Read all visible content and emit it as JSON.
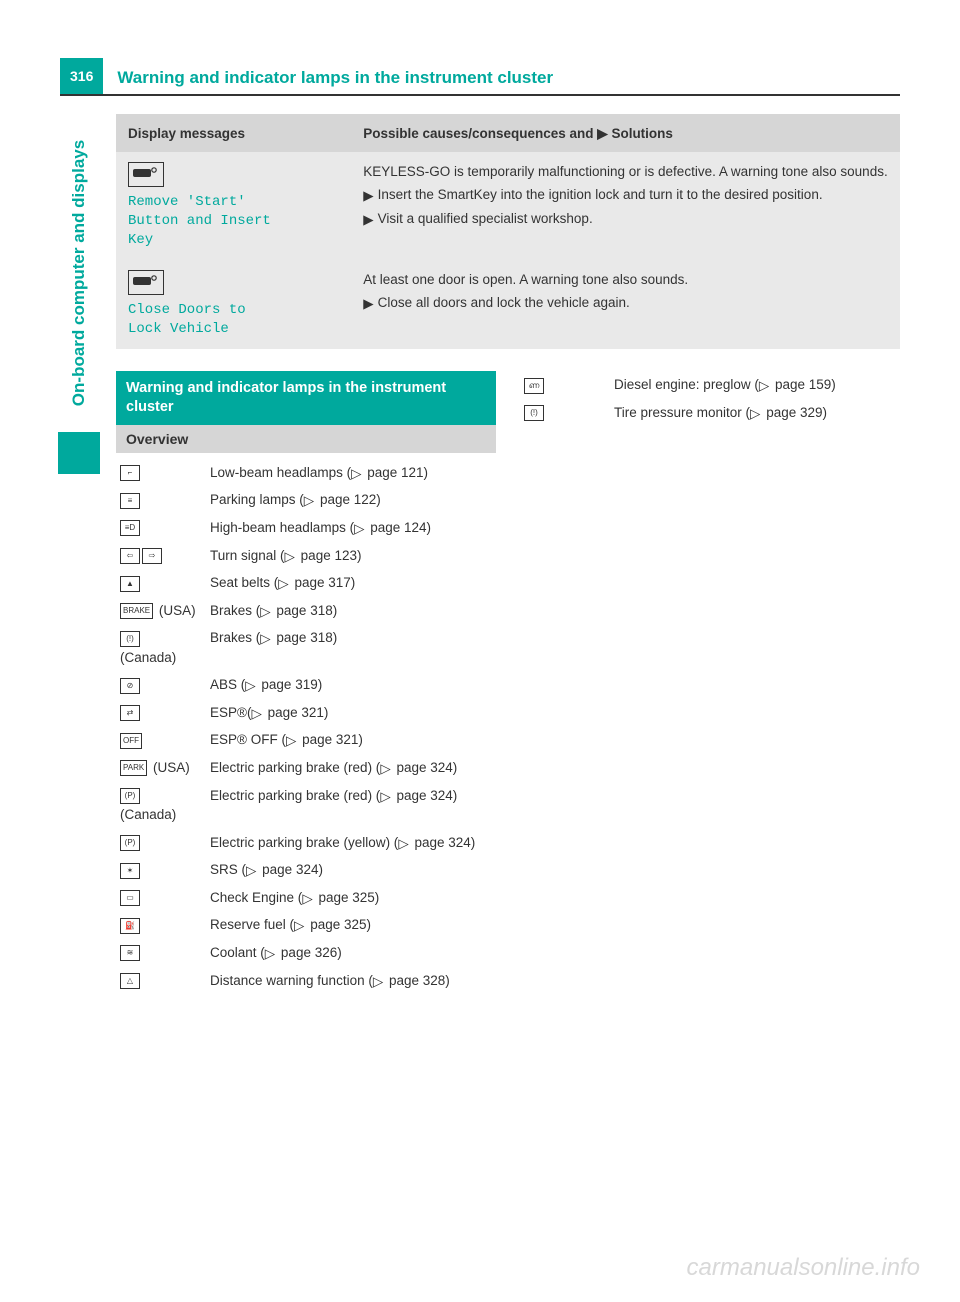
{
  "page_number": "316",
  "header_title": "Warning and indicator lamps in the instrument cluster",
  "side_tab": "On-board computer and displays",
  "watermark": "carmanualsonline.info",
  "colors": {
    "accent": "#00a99d",
    "header_bg": "#d6d6d6",
    "row_bg": "#e9e9e9",
    "text": "#333333"
  },
  "messages_table": {
    "head_left": "Display messages",
    "head_right_prefix": "Possible causes/consequences and ",
    "head_right_suffix": " Solutions",
    "rows": [
      {
        "mono": "Remove 'Start'\nButton and Insert\nKey",
        "intro": "KEYLESS-GO is temporarily malfunctioning or is defective. A warning tone also sounds.",
        "bullets": [
          "Insert the SmartKey into the ignition lock and turn it to the desired position.",
          "Visit a qualified specialist workshop."
        ]
      },
      {
        "mono": "Close Doors to\nLock Vehicle",
        "intro": "At least one door is open. A warning tone also sounds.",
        "bullets": [
          "Close all doors and lock the vehicle again."
        ]
      }
    ]
  },
  "section_title": "Warning and indicator lamps in the instrument cluster",
  "overview_label": "Overview",
  "lamps_left": [
    {
      "icon": "⌐",
      "region": "",
      "desc": "Low-beam headlamps (▷ page 121)"
    },
    {
      "icon": "≡",
      "region": "",
      "desc": "Parking lamps (▷ page 122)"
    },
    {
      "icon": "≡D",
      "region": "",
      "desc": "High-beam headlamps (▷ page 124)"
    },
    {
      "icon": "⇦ ⇨",
      "region": "",
      "desc": "Turn signal (▷ page 123)"
    },
    {
      "icon": "▲",
      "region": "",
      "desc": "Seat belts (▷ page 317)"
    },
    {
      "icon": "BRAKE",
      "region": "(USA)",
      "desc": "Brakes (▷ page 318)"
    },
    {
      "icon": "(!)",
      "region": "(Canada)",
      "desc": "Brakes (▷ page 318)"
    },
    {
      "icon": "⊘",
      "region": "",
      "desc": "ABS (▷ page 319)"
    },
    {
      "icon": "⇄",
      "region": "",
      "desc": "ESP®(▷ page 321)"
    },
    {
      "icon": "OFF",
      "region": "",
      "desc": "ESP® OFF (▷ page 321)"
    },
    {
      "icon": "PARK",
      "region": "(USA)",
      "desc": "Electric parking brake (red) (▷ page 324)"
    },
    {
      "icon": "(P)",
      "region": "(Canada)",
      "desc": "Electric parking brake (red) (▷ page 324)"
    },
    {
      "icon": "(P)",
      "region": "",
      "desc": "Electric parking brake (yellow) (▷ page 324)"
    },
    {
      "icon": "✶",
      "region": "",
      "desc": "SRS (▷ page 324)"
    },
    {
      "icon": "▭",
      "region": "",
      "desc": "Check Engine (▷ page 325)"
    },
    {
      "icon": "⛽",
      "region": "",
      "desc": "Reserve fuel (▷ page 325)"
    },
    {
      "icon": "≋",
      "region": "",
      "desc": "Coolant (▷ page 326)"
    },
    {
      "icon": "△",
      "region": "",
      "desc": "Distance warning function (▷ page 328)"
    }
  ],
  "lamps_right": [
    {
      "icon": "ണ",
      "region": "",
      "desc": "Diesel engine: preglow (▷ page 159)"
    },
    {
      "icon": "(!)",
      "region": "",
      "desc": "Tire pressure monitor (▷ page 329)"
    }
  ]
}
